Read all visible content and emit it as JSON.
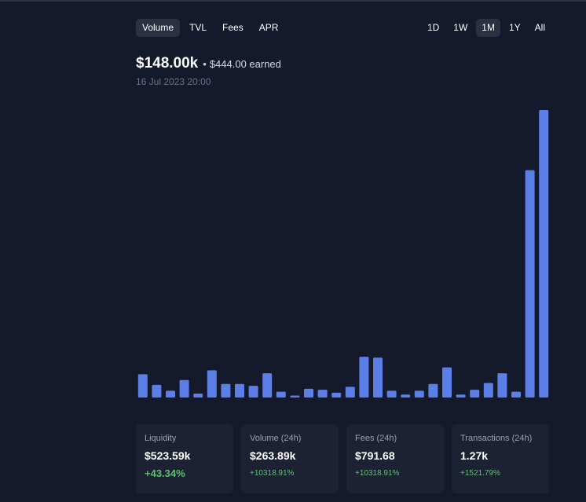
{
  "metric_tabs": [
    {
      "label": "Volume",
      "active": true
    },
    {
      "label": "TVL",
      "active": false
    },
    {
      "label": "Fees",
      "active": false
    },
    {
      "label": "APR",
      "active": false
    }
  ],
  "range_tabs": [
    {
      "label": "1D",
      "active": false
    },
    {
      "label": "1W",
      "active": false
    },
    {
      "label": "1M",
      "active": true
    },
    {
      "label": "1Y",
      "active": false
    },
    {
      "label": "All",
      "active": false
    }
  ],
  "header": {
    "value": "$148.00k",
    "separator": "•",
    "earned": "$444.00 earned",
    "timestamp": "16 Jul 2023 20:00"
  },
  "chart_data": {
    "type": "bar",
    "bar_color": "#5b7fe6",
    "ylim": [
      0,
      148
    ],
    "values": [
      12,
      6.5,
      3.5,
      9,
      2,
      14,
      7,
      7,
      6,
      12.5,
      3,
      1,
      4.5,
      4,
      2.5,
      5.5,
      21,
      20.5,
      3.5,
      1.5,
      3.5,
      7,
      15.5,
      1.5,
      4,
      7.5,
      12.5,
      3,
      117,
      148
    ]
  },
  "stats": [
    {
      "label": "Liquidity",
      "value": "$523.59k",
      "change": "+43.34%",
      "emphasis": true
    },
    {
      "label": "Volume (24h)",
      "value": "$263.89k",
      "change": "+10318.91%",
      "emphasis": false
    },
    {
      "label": "Fees (24h)",
      "value": "$791.68",
      "change": "+10318.91%",
      "emphasis": false
    },
    {
      "label": "Transactions (24h)",
      "value": "1.27k",
      "change": "+1521.79%",
      "emphasis": false
    }
  ],
  "colors": {
    "background": "#141a2b",
    "card": "#1c2233",
    "positive": "#5fbf74",
    "accent": "#5b7fe6"
  }
}
